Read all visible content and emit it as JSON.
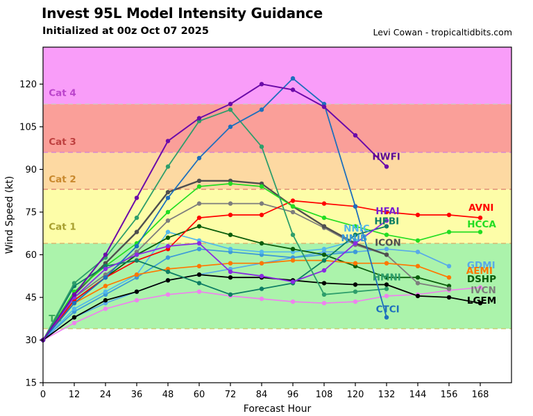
{
  "header": {
    "title": "Invest 95L Model Intensity Guidance",
    "subtitle": "Initialized at 00z Oct 07 2025",
    "credit": "Levi Cowan - tropicaltidbits.com"
  },
  "chart_data": {
    "type": "line",
    "title": "Invest 95L Model Intensity Guidance",
    "xlabel": "Forecast Hour",
    "ylabel": "Wind Speed (kt)",
    "xlim": [
      0,
      180
    ],
    "ylim": [
      15,
      133
    ],
    "x_ticks": [
      0,
      12,
      24,
      36,
      48,
      60,
      72,
      84,
      96,
      108,
      120,
      132,
      144,
      156,
      168
    ],
    "y_ticks": [
      15,
      30,
      45,
      60,
      75,
      90,
      105,
      120
    ],
    "grid": false,
    "legend_position": "inline-labels",
    "hours": [
      0,
      12,
      24,
      36,
      48,
      60,
      72,
      84,
      96,
      108,
      120,
      132,
      144,
      156,
      168
    ],
    "bands": [
      {
        "name": "below-TS",
        "from": 15,
        "to": 34,
        "fill": "#ffffff",
        "label": "",
        "label_color": "",
        "boundary_color": "#cdeccd"
      },
      {
        "name": "TS",
        "from": 34,
        "to": 64,
        "fill": "#abf3ab",
        "label": "TS",
        "label_color": "#3aa85a",
        "label_kt": 37.5,
        "boundary_color": "#c9c96e"
      },
      {
        "name": "Cat-1",
        "from": 64,
        "to": 83,
        "fill": "#fdfda8",
        "label": "Cat 1",
        "label_color": "#a8a030",
        "label_kt": 69.8,
        "boundary_color": "#dcab66"
      },
      {
        "name": "Cat-2",
        "from": 83,
        "to": 96,
        "fill": "#fdd9a2",
        "label": "Cat 2",
        "label_color": "#c9892e",
        "label_kt": 86.6,
        "boundary_color": "#e08473"
      },
      {
        "name": "Cat-3",
        "from": 96,
        "to": 113,
        "fill": "#fa9f99",
        "label": "Cat 3",
        "label_color": "#bf4040",
        "label_kt": 99.7,
        "boundary_color": "#d27fd8"
      },
      {
        "name": "Cat-4",
        "from": 113,
        "to": 133,
        "fill": "#f99df9",
        "label": "Cat 4",
        "label_color": "#bb44cc",
        "label_kt": 116.9,
        "boundary_color": ""
      }
    ],
    "series": [
      {
        "name": "GDMI",
        "color": "#58aae8",
        "width": 1.7,
        "values": [
          30,
          38,
          43,
          47,
          51,
          53,
          55,
          57,
          59,
          61,
          61,
          62,
          61,
          56
        ]
      },
      {
        "name": "NNIB",
        "color": "#3c9ad8",
        "width": 1.7,
        "values": [
          30,
          40,
          46,
          52,
          59,
          62,
          61,
          60,
          59,
          60,
          61
        ]
      },
      {
        "name": "NNIC",
        "color": "#52b8ec",
        "width": 1.7,
        "values": [
          30,
          41,
          47,
          53,
          68,
          65,
          62,
          61,
          61,
          62,
          65
        ]
      },
      {
        "name": "unlabeled-pink",
        "color": "#ee82ee",
        "width": 1.7,
        "values": [
          30,
          36,
          41,
          44,
          46,
          47,
          45.5,
          44.5,
          43.5,
          43,
          43.5,
          45.5,
          46,
          47.5,
          48.5
        ]
      },
      {
        "name": "LGEM",
        "color": "#000000",
        "width": 1.8,
        "values": [
          30,
          38,
          44,
          47,
          51,
          53,
          52,
          52,
          51,
          50,
          49.5,
          49.5,
          45.5,
          45,
          43
        ]
      },
      {
        "name": "DSHP",
        "color": "#0b5d0b",
        "width": 1.8,
        "values": [
          30,
          44,
          52,
          60,
          66,
          70,
          67,
          64,
          62,
          60,
          56,
          52,
          52,
          49
        ]
      },
      {
        "name": "IVCN",
        "color": "#7d7d7d",
        "width": 1.8,
        "values": [
          30,
          45,
          53,
          61,
          72,
          78,
          78,
          78,
          75,
          69.5,
          63.5,
          60,
          50,
          48
        ]
      },
      {
        "name": "ICON",
        "color": "#4f4f4f",
        "width": 2.4,
        "values": [
          30,
          46,
          57,
          68,
          82,
          86,
          86,
          85,
          77,
          70,
          64,
          60
        ]
      },
      {
        "name": "AEMI",
        "color": "#ff7700",
        "width": 1.7,
        "values": [
          30,
          43,
          49,
          53,
          55,
          56,
          57,
          57,
          58,
          58,
          57,
          57,
          56,
          52
        ]
      },
      {
        "name": "AVNI",
        "color": "#ff0000",
        "width": 1.7,
        "values": [
          30,
          44,
          52,
          58,
          62,
          73,
          74,
          74,
          79,
          78,
          77,
          75,
          74,
          74,
          73
        ]
      },
      {
        "name": "HCCA",
        "color": "#22dd22",
        "width": 1.7,
        "values": [
          30,
          47,
          56,
          64,
          75,
          84,
          85,
          84,
          77,
          73,
          70,
          67,
          65,
          68,
          68
        ]
      },
      {
        "name": "HFBI",
        "color": "#0e7e64",
        "width": 1.8,
        "values": [
          30,
          49,
          56,
          58,
          54,
          50,
          46,
          48,
          50,
          58,
          67,
          70
        ]
      },
      {
        "name": "HFAI",
        "color": "#8a2be2",
        "width": 1.8,
        "values": [
          30,
          45,
          55,
          60,
          63,
          64,
          54,
          52.5,
          50.5,
          54.5,
          64,
          72
        ]
      },
      {
        "name": "HMNI",
        "color": "#2e9e6b",
        "width": 1.8,
        "values": [
          30,
          50,
          59,
          73,
          91,
          107,
          111,
          98,
          67,
          46,
          47,
          48
        ]
      },
      {
        "name": "CTCI",
        "color": "#1d6fbd",
        "width": 1.8,
        "values": [
          30,
          43,
          52,
          63,
          80,
          94,
          105,
          111,
          122,
          113,
          77,
          38
        ]
      },
      {
        "name": "HWFI",
        "color": "#6c0ba9",
        "width": 2.0,
        "values": [
          30,
          46,
          60,
          80,
          100,
          108,
          113,
          120,
          118,
          112,
          102,
          91
        ]
      }
    ],
    "model_labels": [
      {
        "text": "HWFI",
        "hour": 126.5,
        "kt": 94.5,
        "color": "#5e0b96"
      },
      {
        "text": "HFAI",
        "hour": 127.8,
        "kt": 75.3,
        "color": "#7a1fd0"
      },
      {
        "text": "HFBI",
        "hour": 127.3,
        "kt": 71.8,
        "color": "#0e7e64"
      },
      {
        "text": "AVNI",
        "hour": 163.5,
        "kt": 76.6,
        "color": "#ff0000"
      },
      {
        "text": "HCCA",
        "hour": 163.0,
        "kt": 70.7,
        "color": "#22dd22"
      },
      {
        "text": "NNIC",
        "hour": 115.5,
        "kt": 69.3,
        "color": "#52b8ec"
      },
      {
        "text": "NNIB",
        "hour": 114.5,
        "kt": 65.8,
        "color": "#3c9ad8"
      },
      {
        "text": "ICON",
        "hour": 127.5,
        "kt": 64.3,
        "color": "#4f4f4f"
      },
      {
        "text": "GDMI",
        "hour": 162.9,
        "kt": 56.3,
        "color": "#58aae8"
      },
      {
        "text": "AEMI",
        "hour": 162.6,
        "kt": 54.4,
        "color": "#ff7700"
      },
      {
        "text": "DSHP",
        "hour": 162.9,
        "kt": 51.5,
        "color": "#0b5d0b"
      },
      {
        "text": "IVCN",
        "hour": 164.3,
        "kt": 47.6,
        "color": "#7d7d7d"
      },
      {
        "text": "LGEM",
        "hour": 162.9,
        "kt": 43.9,
        "color": "#000000"
      },
      {
        "text": "HMNI",
        "hour": 126.6,
        "kt": 52.0,
        "color": "#2e9e6b"
      },
      {
        "text": "CTCI",
        "hour": 127.9,
        "kt": 40.9,
        "color": "#1d6fbd"
      }
    ]
  }
}
